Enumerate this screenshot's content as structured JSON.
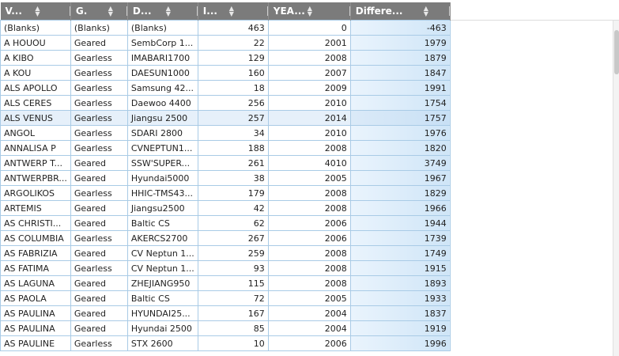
{
  "grid": {
    "columns": [
      {
        "key": "vessel",
        "label": "V...",
        "align": "left"
      },
      {
        "key": "gear",
        "label": "G.",
        "align": "left"
      },
      {
        "key": "design",
        "label": "D...",
        "align": "left"
      },
      {
        "key": "intake",
        "label": "I...",
        "align": "right"
      },
      {
        "key": "year",
        "label": "YEA...",
        "align": "right"
      },
      {
        "key": "difference",
        "label": "Differe...",
        "align": "right"
      }
    ],
    "rows": [
      {
        "vessel": "(Blanks)",
        "gear": "(Blanks)",
        "design": "(Blanks)",
        "intake": "463",
        "year": "0",
        "difference": "-463"
      },
      {
        "vessel": "A HOUOU",
        "gear": "Geared",
        "design": "SembCorp 1...",
        "intake": "22",
        "year": "2001",
        "difference": "1979"
      },
      {
        "vessel": "A KIBO",
        "gear": "Gearless",
        "design": "IMABARI1700",
        "intake": "129",
        "year": "2008",
        "difference": "1879"
      },
      {
        "vessel": "A KOU",
        "gear": "Gearless",
        "design": "DAESUN1000",
        "intake": "160",
        "year": "2007",
        "difference": "1847"
      },
      {
        "vessel": "ALS APOLLO",
        "gear": "Gearless",
        "design": "Samsung 42...",
        "intake": "18",
        "year": "2009",
        "difference": "1991"
      },
      {
        "vessel": "ALS CERES",
        "gear": "Gearless",
        "design": "Daewoo 4400",
        "intake": "256",
        "year": "2010",
        "difference": "1754"
      },
      {
        "vessel": "ALS VENUS",
        "gear": "Gearless",
        "design": "Jiangsu 2500",
        "intake": "257",
        "year": "2014",
        "difference": "1757"
      },
      {
        "vessel": "ANGOL",
        "gear": "Gearless",
        "design": "SDARI 2800",
        "intake": "34",
        "year": "2010",
        "difference": "1976"
      },
      {
        "vessel": "ANNALISA P",
        "gear": "Gearless",
        "design": "CVNEPTUN1...",
        "intake": "188",
        "year": "2008",
        "difference": "1820"
      },
      {
        "vessel": "ANTWERP T...",
        "gear": "Geared",
        "design": "SSW'SUPER...",
        "intake": "261",
        "year": "4010",
        "difference": "3749"
      },
      {
        "vessel": "ANTWERPBR...",
        "gear": "Geared",
        "design": "Hyundai5000",
        "intake": "38",
        "year": "2005",
        "difference": "1967"
      },
      {
        "vessel": "ARGOLIKOS",
        "gear": "Gearless",
        "design": "HHIC-TMS43...",
        "intake": "179",
        "year": "2008",
        "difference": "1829"
      },
      {
        "vessel": "ARTEMIS",
        "gear": "Geared",
        "design": "Jiangsu2500",
        "intake": "42",
        "year": "2008",
        "difference": "1966"
      },
      {
        "vessel": "AS CHRISTI...",
        "gear": "Geared",
        "design": "Baltic CS",
        "intake": "62",
        "year": "2006",
        "difference": "1944"
      },
      {
        "vessel": "AS COLUMBIA",
        "gear": "Gearless",
        "design": "AKERCS2700",
        "intake": "267",
        "year": "2006",
        "difference": "1739"
      },
      {
        "vessel": "AS FABRIZIA",
        "gear": "Geared",
        "design": "CV Neptun 1...",
        "intake": "259",
        "year": "2008",
        "difference": "1749"
      },
      {
        "vessel": "AS FATIMA",
        "gear": "Gearless",
        "design": "CV Neptun 1...",
        "intake": "93",
        "year": "2008",
        "difference": "1915"
      },
      {
        "vessel": "AS LAGUNA",
        "gear": "Geared",
        "design": "ZHEJIANG950",
        "intake": "115",
        "year": "2008",
        "difference": "1893"
      },
      {
        "vessel": "AS PAOLA",
        "gear": "Geared",
        "design": "Baltic CS",
        "intake": "72",
        "year": "2005",
        "difference": "1933"
      },
      {
        "vessel": "AS PAULINA",
        "gear": "Geared",
        "design": "HYUNDAI25...",
        "intake": "167",
        "year": "2004",
        "difference": "1837"
      },
      {
        "vessel": "AS PAULINA",
        "gear": "Geared",
        "design": "Hyundai 2500",
        "intake": "85",
        "year": "2004",
        "difference": "1919"
      },
      {
        "vessel": "AS PAULINE",
        "gear": "Gearless",
        "design": "STX 2600",
        "intake": "10",
        "year": "2006",
        "difference": "1996"
      }
    ],
    "highlighted_row": 6
  },
  "icons": {
    "sort": "sort-updown-icon"
  },
  "colors": {
    "header_bg": "#7b7b7b",
    "grid_border": "#a9cbe6",
    "row_highlight": "#e6f0fa",
    "diff_bar": "#cfe5f7"
  }
}
